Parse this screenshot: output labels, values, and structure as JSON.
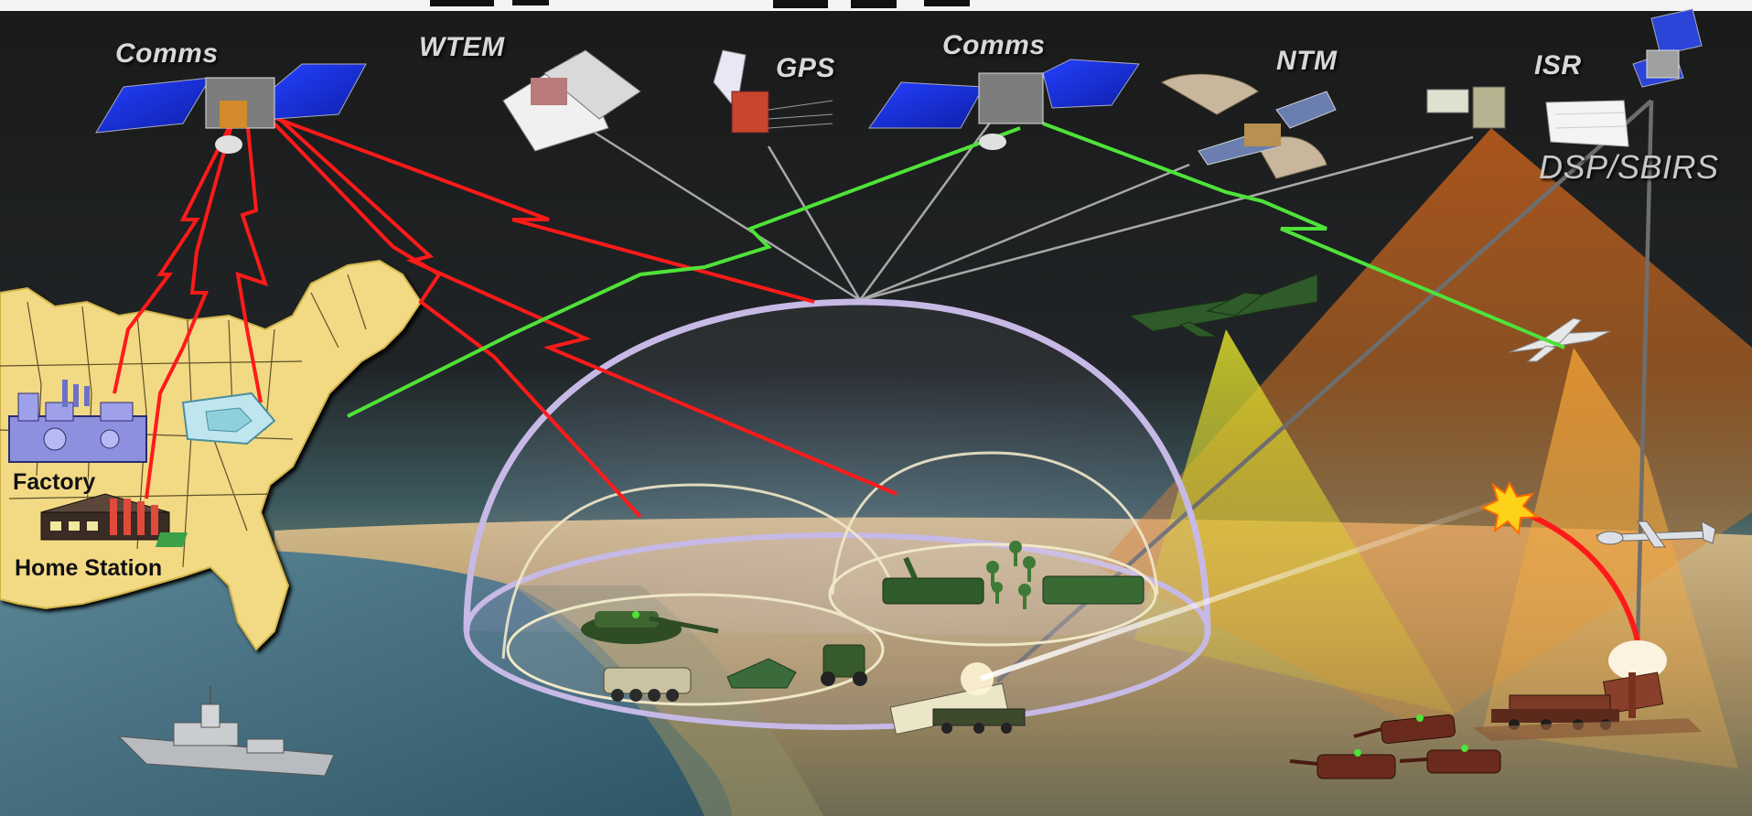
{
  "labels": {
    "comms_left": "Comms",
    "wtem": "WTEM",
    "gps": "GPS",
    "comms_center": "Comms",
    "ntm": "NTM",
    "isr": "ISR",
    "dsp_sbirs": "DSP/SBIRS",
    "factory": "Factory",
    "home_station": "Home Station"
  },
  "colors": {
    "sky": "#1b1b1b",
    "ocean": "#3f6f82",
    "land_map": "#f2d983",
    "terrain": "#b39a6e",
    "comm_link_red": "#ff1a1a",
    "comm_link_green": "#4fe23a",
    "data_link_gray": "#a8a8a8",
    "dome": "#c7b9e6",
    "sensor_yellow": "#d8d62a",
    "sensor_orange": "#e0731a",
    "satellite_panel": "#1a36d8"
  },
  "icons": [
    "communications-satellite-icon",
    "weather-satellite-icon",
    "gps-satellite-icon",
    "national-technical-means-satellite-icon",
    "isr-satellite-icon",
    "early-warning-satellite-icon",
    "factory-icon",
    "pentagon-icon",
    "home-station-icon",
    "warship-icon",
    "surveillance-aircraft-icon",
    "uav-icon",
    "predator-drone-icon",
    "tank-icon",
    "missile-launcher-icon",
    "interceptor-missile-icon",
    "explosion-icon"
  ]
}
